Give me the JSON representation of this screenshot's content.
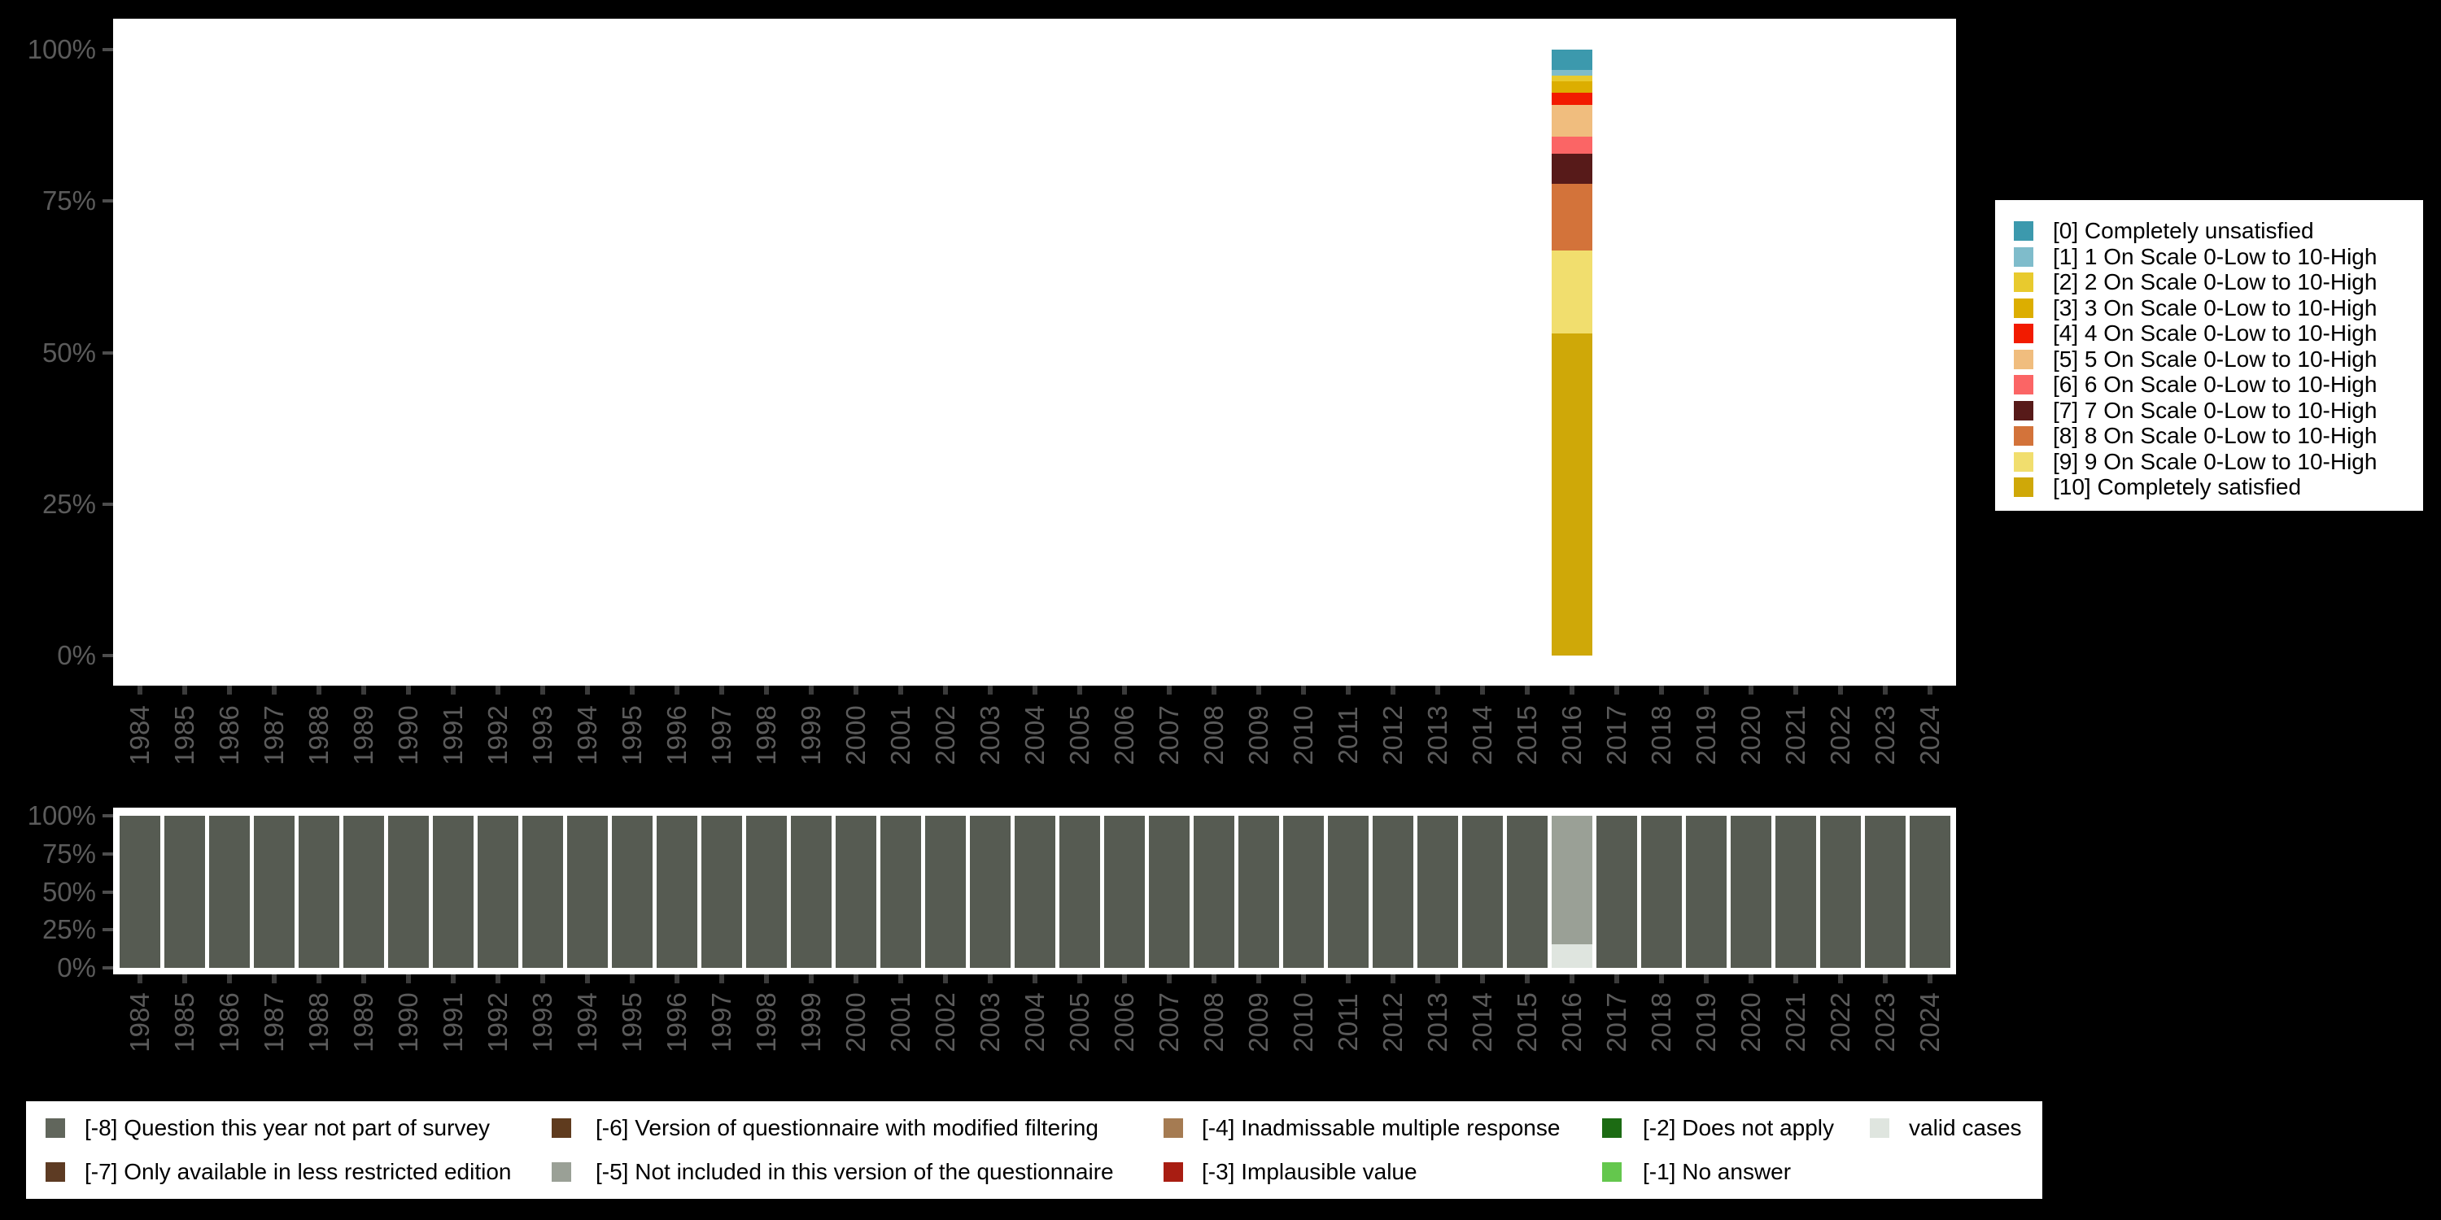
{
  "colors": {
    "background": "#000000",
    "plot_background": "#ffffff",
    "axis_text": "#5b5b5b",
    "y_tick_mark": "#4d4d4d",
    "x_tick_mark": "#3b3b3b",
    "legend_background": "#ffffff",
    "legend_text": "#000000"
  },
  "axes": {
    "y_tick_labels": [
      "100%",
      "75%",
      "50%",
      "25%",
      "0%"
    ],
    "years": [
      "1984",
      "1985",
      "1986",
      "1987",
      "1988",
      "1989",
      "1990",
      "1991",
      "1992",
      "1993",
      "1994",
      "1995",
      "1996",
      "1997",
      "1998",
      "1999",
      "2000",
      "2001",
      "2002",
      "2003",
      "2004",
      "2005",
      "2006",
      "2007",
      "2008",
      "2009",
      "2010",
      "2011",
      "2012",
      "2013",
      "2014",
      "2015",
      "2016",
      "2017",
      "2018",
      "2019",
      "2020",
      "2021",
      "2022",
      "2023",
      "2024"
    ]
  },
  "legend_scale": {
    "items": [
      {
        "label": "[0] Completely unsatisfied",
        "color": "#3c99ad"
      },
      {
        "label": "[1] 1 On Scale 0-Low to 10-High",
        "color": "#7fbccb"
      },
      {
        "label": "[2] 2 On Scale 0-Low to 10-High",
        "color": "#e8ca2e"
      },
      {
        "label": "[3] 3 On Scale 0-Low to 10-High",
        "color": "#dcae00"
      },
      {
        "label": "[4] 4 On Scale 0-Low to 10-High",
        "color": "#f21b00"
      },
      {
        "label": "[5] 5 On Scale 0-Low to 10-High",
        "color": "#f0bd7e"
      },
      {
        "label": "[6] 6 On Scale 0-Low to 10-High",
        "color": "#fb6565"
      },
      {
        "label": "[7] 7 On Scale 0-Low to 10-High",
        "color": "#571a19"
      },
      {
        "label": "[8] 8 On Scale 0-Low to 10-High",
        "color": "#d3733a"
      },
      {
        "label": "[9] 9 On Scale 0-Low to 10-High",
        "color": "#f1de6e"
      },
      {
        "label": "[10] Completely satisfied",
        "color": "#cfa808"
      }
    ]
  },
  "legend_missing": {
    "items": [
      {
        "label": "[-8] Question this year not part of survey",
        "color": "#61665c"
      },
      {
        "label": "[-7] Only available in less restricted edition",
        "color": "#5d3b23"
      },
      {
        "label": "[-6] Version of questionnaire with modified filtering",
        "color": "#5f3b1e"
      },
      {
        "label": "[-5] Not included in this version of the questionnaire",
        "color": "#9aa096"
      },
      {
        "label": "[-4] Inadmissable multiple response",
        "color": "#a57b52"
      },
      {
        "label": "[-3] Implausible value",
        "color": "#a81d12"
      },
      {
        "label": "[-2] Does not apply",
        "color": "#1c6b13"
      },
      {
        "label": "[-1] No answer",
        "color": "#64c74d"
      },
      {
        "label": "valid cases",
        "color": "#dfe5df"
      }
    ]
  },
  "chart_data": [
    {
      "type": "bar",
      "stacked": true,
      "title": "",
      "xlabel": "",
      "ylabel": "",
      "ylim": [
        0,
        100
      ],
      "y_tick_labels": [
        "0%",
        "25%",
        "50%",
        "75%",
        "100%"
      ],
      "grid": false,
      "legend_position": "right",
      "x": [
        "1984",
        "1985",
        "1986",
        "1987",
        "1988",
        "1989",
        "1990",
        "1991",
        "1992",
        "1993",
        "1994",
        "1995",
        "1996",
        "1997",
        "1998",
        "1999",
        "2000",
        "2001",
        "2002",
        "2003",
        "2004",
        "2005",
        "2006",
        "2007",
        "2008",
        "2009",
        "2010",
        "2011",
        "2012",
        "2013",
        "2014",
        "2015",
        "2016",
        "2017",
        "2018",
        "2019",
        "2020",
        "2021",
        "2022",
        "2023",
        "2024"
      ],
      "note": "Distribution of valid answers in percent; only the year 2016 has data, all other years are empty.",
      "series": [
        {
          "name": "[0] Completely unsatisfied",
          "color": "#3c99ad",
          "values_by_year": {
            "2016": 3.4
          }
        },
        {
          "name": "[1] 1 On Scale 0-Low to 10-High",
          "color": "#7fbccb",
          "values_by_year": {
            "2016": 0.9
          }
        },
        {
          "name": "[2] 2 On Scale 0-Low to 10-High",
          "color": "#e8ca2e",
          "values_by_year": {
            "2016": 1.0
          }
        },
        {
          "name": "[3] 3 On Scale 0-Low to 10-High",
          "color": "#dcae00",
          "values_by_year": {
            "2016": 1.8
          }
        },
        {
          "name": "[4] 4 On Scale 0-Low to 10-High",
          "color": "#f21b00",
          "values_by_year": {
            "2016": 2.0
          }
        },
        {
          "name": "[5] 5 On Scale 0-Low to 10-High",
          "color": "#f0bd7e",
          "values_by_year": {
            "2016": 5.2
          }
        },
        {
          "name": "[6] 6 On Scale 0-Low to 10-High",
          "color": "#fb6565",
          "values_by_year": {
            "2016": 2.9
          }
        },
        {
          "name": "[7] 7 On Scale 0-Low to 10-High",
          "color": "#571a19",
          "values_by_year": {
            "2016": 4.9
          }
        },
        {
          "name": "[8] 8 On Scale 0-Low to 10-High",
          "color": "#d3733a",
          "values_by_year": {
            "2016": 11.0
          }
        },
        {
          "name": "[9] 9 On Scale 0-Low to 10-High",
          "color": "#f1de6e",
          "values_by_year": {
            "2016": 13.8
          }
        },
        {
          "name": "[10] Completely satisfied",
          "color": "#cfa808",
          "values_by_year": {
            "2016": 53.1
          }
        }
      ]
    },
    {
      "type": "bar",
      "stacked": true,
      "title": "",
      "xlabel": "",
      "ylabel": "",
      "ylim": [
        0,
        100
      ],
      "y_tick_labels": [
        "0%",
        "25%",
        "50%",
        "75%",
        "100%"
      ],
      "grid": false,
      "legend_position": "bottom",
      "x": [
        "1984",
        "1985",
        "1986",
        "1987",
        "1988",
        "1989",
        "1990",
        "1991",
        "1992",
        "1993",
        "1994",
        "1995",
        "1996",
        "1997",
        "1998",
        "1999",
        "2000",
        "2001",
        "2002",
        "2003",
        "2004",
        "2005",
        "2006",
        "2007",
        "2008",
        "2009",
        "2010",
        "2011",
        "2012",
        "2013",
        "2014",
        "2015",
        "2016",
        "2017",
        "2018",
        "2019",
        "2020",
        "2021",
        "2022",
        "2023",
        "2024"
      ],
      "note": "Share of missing-value codes and valid cases per year in percent.",
      "series": [
        {
          "name": "[-8] Question this year not part of survey",
          "color": "#565b52",
          "values": [
            100,
            100,
            100,
            100,
            100,
            100,
            100,
            100,
            100,
            100,
            100,
            100,
            100,
            100,
            100,
            100,
            100,
            100,
            100,
            100,
            100,
            100,
            100,
            100,
            100,
            100,
            100,
            100,
            100,
            100,
            100,
            100,
            0,
            100,
            100,
            100,
            100,
            100,
            100,
            100,
            100
          ]
        },
        {
          "name": "[-5] Not included in this version of the questionnaire",
          "color": "#9aa096",
          "values": [
            0,
            0,
            0,
            0,
            0,
            0,
            0,
            0,
            0,
            0,
            0,
            0,
            0,
            0,
            0,
            0,
            0,
            0,
            0,
            0,
            0,
            0,
            0,
            0,
            0,
            0,
            0,
            0,
            0,
            0,
            0,
            0,
            84.5,
            0,
            0,
            0,
            0,
            0,
            0,
            0,
            0
          ]
        },
        {
          "name": "valid cases",
          "color": "#dfe5df",
          "values": [
            0,
            0,
            0,
            0,
            0,
            0,
            0,
            0,
            0,
            0,
            0,
            0,
            0,
            0,
            0,
            0,
            0,
            0,
            0,
            0,
            0,
            0,
            0,
            0,
            0,
            0,
            0,
            0,
            0,
            0,
            0,
            0,
            15.5,
            0,
            0,
            0,
            0,
            0,
            0,
            0,
            0
          ]
        }
      ]
    }
  ]
}
